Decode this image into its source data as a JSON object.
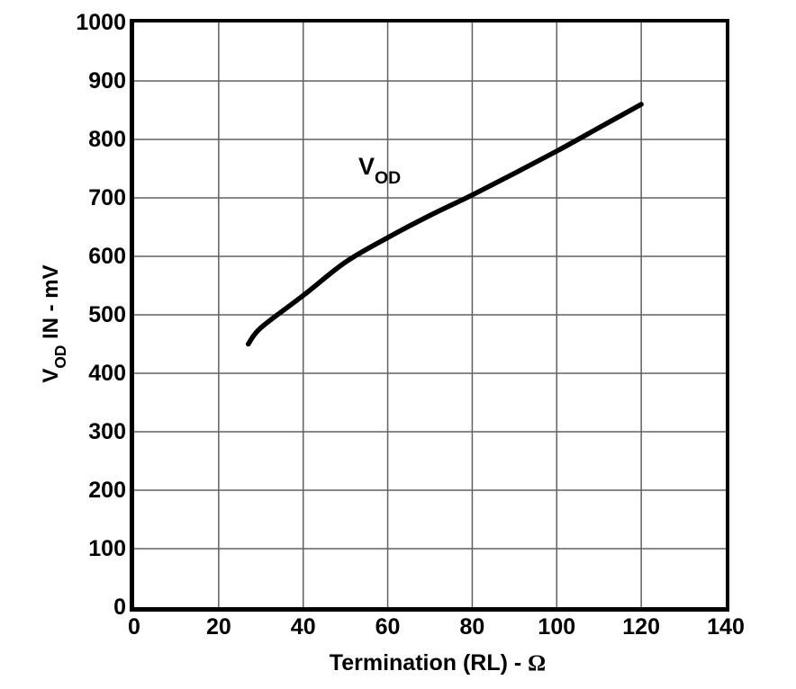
{
  "colors": {
    "background": "#ffffff",
    "axis": "#000000",
    "grid": "#606060",
    "curve": "#000000",
    "text": "#000000"
  },
  "y_axis": {
    "title_v": "V",
    "title_sub": "OD",
    "title_rest": " IN - mV"
  },
  "x_axis": {
    "title": "Termination (RL) - ",
    "omega": "Ω"
  },
  "annotation": {
    "v": "V",
    "sub": "OD"
  },
  "chart_data": {
    "type": "line",
    "title": "",
    "xlabel": "Termination (RL) - Ω",
    "ylabel": "VOD IN - mV",
    "xlim": [
      0,
      140
    ],
    "ylim": [
      0,
      1000
    ],
    "xticks": [
      0,
      20,
      40,
      60,
      80,
      100,
      120,
      140
    ],
    "yticks": [
      0,
      100,
      200,
      300,
      400,
      500,
      600,
      700,
      800,
      900,
      1000
    ],
    "grid": true,
    "legend_position": "none",
    "series": [
      {
        "name": "VOD",
        "x": [
          27,
          30,
          40,
          50,
          60,
          70,
          80,
          90,
          100,
          110,
          120
        ],
        "y": [
          450,
          478,
          533,
          590,
          632,
          670,
          705,
          742,
          780,
          820,
          860
        ]
      }
    ]
  }
}
